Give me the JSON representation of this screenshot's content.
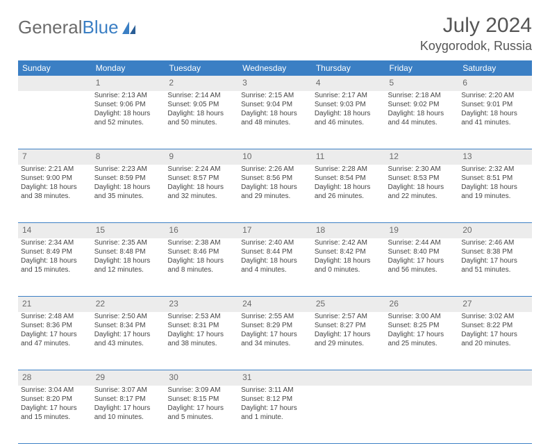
{
  "brand": {
    "part1": "General",
    "part2": "Blue"
  },
  "header": {
    "month_title": "July 2024",
    "location": "Koygorodok, Russia"
  },
  "colors": {
    "accent": "#3b7fc4",
    "daynum_bg": "#ececec",
    "text": "#444444"
  },
  "day_headers": [
    "Sunday",
    "Monday",
    "Tuesday",
    "Wednesday",
    "Thursday",
    "Friday",
    "Saturday"
  ],
  "weeks": [
    {
      "nums": [
        "",
        "1",
        "2",
        "3",
        "4",
        "5",
        "6"
      ],
      "cells": [
        {
          "sunrise": "",
          "sunset": "",
          "daylight": ""
        },
        {
          "sunrise": "Sunrise: 2:13 AM",
          "sunset": "Sunset: 9:06 PM",
          "daylight": "Daylight: 18 hours and 52 minutes."
        },
        {
          "sunrise": "Sunrise: 2:14 AM",
          "sunset": "Sunset: 9:05 PM",
          "daylight": "Daylight: 18 hours and 50 minutes."
        },
        {
          "sunrise": "Sunrise: 2:15 AM",
          "sunset": "Sunset: 9:04 PM",
          "daylight": "Daylight: 18 hours and 48 minutes."
        },
        {
          "sunrise": "Sunrise: 2:17 AM",
          "sunset": "Sunset: 9:03 PM",
          "daylight": "Daylight: 18 hours and 46 minutes."
        },
        {
          "sunrise": "Sunrise: 2:18 AM",
          "sunset": "Sunset: 9:02 PM",
          "daylight": "Daylight: 18 hours and 44 minutes."
        },
        {
          "sunrise": "Sunrise: 2:20 AM",
          "sunset": "Sunset: 9:01 PM",
          "daylight": "Daylight: 18 hours and 41 minutes."
        }
      ]
    },
    {
      "nums": [
        "7",
        "8",
        "9",
        "10",
        "11",
        "12",
        "13"
      ],
      "cells": [
        {
          "sunrise": "Sunrise: 2:21 AM",
          "sunset": "Sunset: 9:00 PM",
          "daylight": "Daylight: 18 hours and 38 minutes."
        },
        {
          "sunrise": "Sunrise: 2:23 AM",
          "sunset": "Sunset: 8:59 PM",
          "daylight": "Daylight: 18 hours and 35 minutes."
        },
        {
          "sunrise": "Sunrise: 2:24 AM",
          "sunset": "Sunset: 8:57 PM",
          "daylight": "Daylight: 18 hours and 32 minutes."
        },
        {
          "sunrise": "Sunrise: 2:26 AM",
          "sunset": "Sunset: 8:56 PM",
          "daylight": "Daylight: 18 hours and 29 minutes."
        },
        {
          "sunrise": "Sunrise: 2:28 AM",
          "sunset": "Sunset: 8:54 PM",
          "daylight": "Daylight: 18 hours and 26 minutes."
        },
        {
          "sunrise": "Sunrise: 2:30 AM",
          "sunset": "Sunset: 8:53 PM",
          "daylight": "Daylight: 18 hours and 22 minutes."
        },
        {
          "sunrise": "Sunrise: 2:32 AM",
          "sunset": "Sunset: 8:51 PM",
          "daylight": "Daylight: 18 hours and 19 minutes."
        }
      ]
    },
    {
      "nums": [
        "14",
        "15",
        "16",
        "17",
        "18",
        "19",
        "20"
      ],
      "cells": [
        {
          "sunrise": "Sunrise: 2:34 AM",
          "sunset": "Sunset: 8:49 PM",
          "daylight": "Daylight: 18 hours and 15 minutes."
        },
        {
          "sunrise": "Sunrise: 2:35 AM",
          "sunset": "Sunset: 8:48 PM",
          "daylight": "Daylight: 18 hours and 12 minutes."
        },
        {
          "sunrise": "Sunrise: 2:38 AM",
          "sunset": "Sunset: 8:46 PM",
          "daylight": "Daylight: 18 hours and 8 minutes."
        },
        {
          "sunrise": "Sunrise: 2:40 AM",
          "sunset": "Sunset: 8:44 PM",
          "daylight": "Daylight: 18 hours and 4 minutes."
        },
        {
          "sunrise": "Sunrise: 2:42 AM",
          "sunset": "Sunset: 8:42 PM",
          "daylight": "Daylight: 18 hours and 0 minutes."
        },
        {
          "sunrise": "Sunrise: 2:44 AM",
          "sunset": "Sunset: 8:40 PM",
          "daylight": "Daylight: 17 hours and 56 minutes."
        },
        {
          "sunrise": "Sunrise: 2:46 AM",
          "sunset": "Sunset: 8:38 PM",
          "daylight": "Daylight: 17 hours and 51 minutes."
        }
      ]
    },
    {
      "nums": [
        "21",
        "22",
        "23",
        "24",
        "25",
        "26",
        "27"
      ],
      "cells": [
        {
          "sunrise": "Sunrise: 2:48 AM",
          "sunset": "Sunset: 8:36 PM",
          "daylight": "Daylight: 17 hours and 47 minutes."
        },
        {
          "sunrise": "Sunrise: 2:50 AM",
          "sunset": "Sunset: 8:34 PM",
          "daylight": "Daylight: 17 hours and 43 minutes."
        },
        {
          "sunrise": "Sunrise: 2:53 AM",
          "sunset": "Sunset: 8:31 PM",
          "daylight": "Daylight: 17 hours and 38 minutes."
        },
        {
          "sunrise": "Sunrise: 2:55 AM",
          "sunset": "Sunset: 8:29 PM",
          "daylight": "Daylight: 17 hours and 34 minutes."
        },
        {
          "sunrise": "Sunrise: 2:57 AM",
          "sunset": "Sunset: 8:27 PM",
          "daylight": "Daylight: 17 hours and 29 minutes."
        },
        {
          "sunrise": "Sunrise: 3:00 AM",
          "sunset": "Sunset: 8:25 PM",
          "daylight": "Daylight: 17 hours and 25 minutes."
        },
        {
          "sunrise": "Sunrise: 3:02 AM",
          "sunset": "Sunset: 8:22 PM",
          "daylight": "Daylight: 17 hours and 20 minutes."
        }
      ]
    },
    {
      "nums": [
        "28",
        "29",
        "30",
        "31",
        "",
        "",
        ""
      ],
      "cells": [
        {
          "sunrise": "Sunrise: 3:04 AM",
          "sunset": "Sunset: 8:20 PM",
          "daylight": "Daylight: 17 hours and 15 minutes."
        },
        {
          "sunrise": "Sunrise: 3:07 AM",
          "sunset": "Sunset: 8:17 PM",
          "daylight": "Daylight: 17 hours and 10 minutes."
        },
        {
          "sunrise": "Sunrise: 3:09 AM",
          "sunset": "Sunset: 8:15 PM",
          "daylight": "Daylight: 17 hours and 5 minutes."
        },
        {
          "sunrise": "Sunrise: 3:11 AM",
          "sunset": "Sunset: 8:12 PM",
          "daylight": "Daylight: 17 hours and 1 minute."
        },
        {
          "sunrise": "",
          "sunset": "",
          "daylight": ""
        },
        {
          "sunrise": "",
          "sunset": "",
          "daylight": ""
        },
        {
          "sunrise": "",
          "sunset": "",
          "daylight": ""
        }
      ]
    }
  ]
}
